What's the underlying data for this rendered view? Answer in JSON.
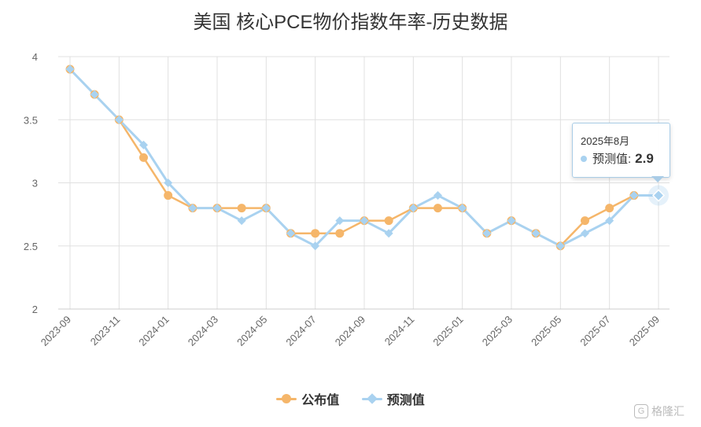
{
  "chart_data": {
    "type": "line",
    "title": "美国 核心PCE物价指数年率-历史数据",
    "ylim": [
      2,
      4
    ],
    "yticks": [
      "2",
      "2.5",
      "3",
      "3.5",
      "4"
    ],
    "x": [
      "2023-09",
      "2023-10",
      "2023-11",
      "2023-12",
      "2024-01",
      "2024-02",
      "2024-03",
      "2024-04",
      "2024-05",
      "2024-06",
      "2024-07",
      "2024-08",
      "2024-09",
      "2024-10",
      "2024-11",
      "2024-12",
      "2025-01",
      "2025-02",
      "2025-03",
      "2025-04",
      "2025-05",
      "2025-06",
      "2025-07",
      "2025-08",
      "2025-09"
    ],
    "xtick_labels": [
      "2023-09",
      "2023-11",
      "2024-01",
      "2024-03",
      "2024-05",
      "2024-07",
      "2024-09",
      "2024-11",
      "2025-01",
      "2025-03",
      "2025-05",
      "2025-07",
      "2025-09"
    ],
    "grid": true,
    "legend_position": "bottom",
    "series": [
      {
        "name": "公布值",
        "color": "#f5b66a",
        "marker": "circle",
        "values": [
          3.9,
          3.7,
          3.5,
          3.2,
          2.9,
          2.8,
          2.8,
          2.8,
          2.8,
          2.6,
          2.6,
          2.6,
          2.7,
          2.7,
          2.8,
          2.8,
          2.8,
          2.6,
          2.7,
          2.6,
          2.5,
          2.7,
          2.8,
          2.9,
          null
        ]
      },
      {
        "name": "预测值",
        "color": "#a9d2f0",
        "marker": "diamond",
        "values": [
          3.9,
          3.7,
          3.5,
          3.3,
          3.0,
          2.8,
          2.8,
          2.7,
          2.8,
          2.6,
          2.5,
          2.7,
          2.7,
          2.6,
          2.8,
          2.9,
          2.8,
          2.6,
          2.7,
          2.6,
          2.5,
          2.6,
          2.7,
          2.9,
          2.9
        ]
      }
    ]
  },
  "tooltip": {
    "date": "2025年8月",
    "series_name": "预测值:",
    "value": "2.9"
  },
  "legend": {
    "items": [
      {
        "label": "公布值",
        "color": "#f5b66a",
        "marker": "circle"
      },
      {
        "label": "预测值",
        "color": "#a9d2f0",
        "marker": "diamond"
      }
    ]
  },
  "watermark": {
    "text": "格隆汇",
    "icon": "g-logo-icon"
  }
}
